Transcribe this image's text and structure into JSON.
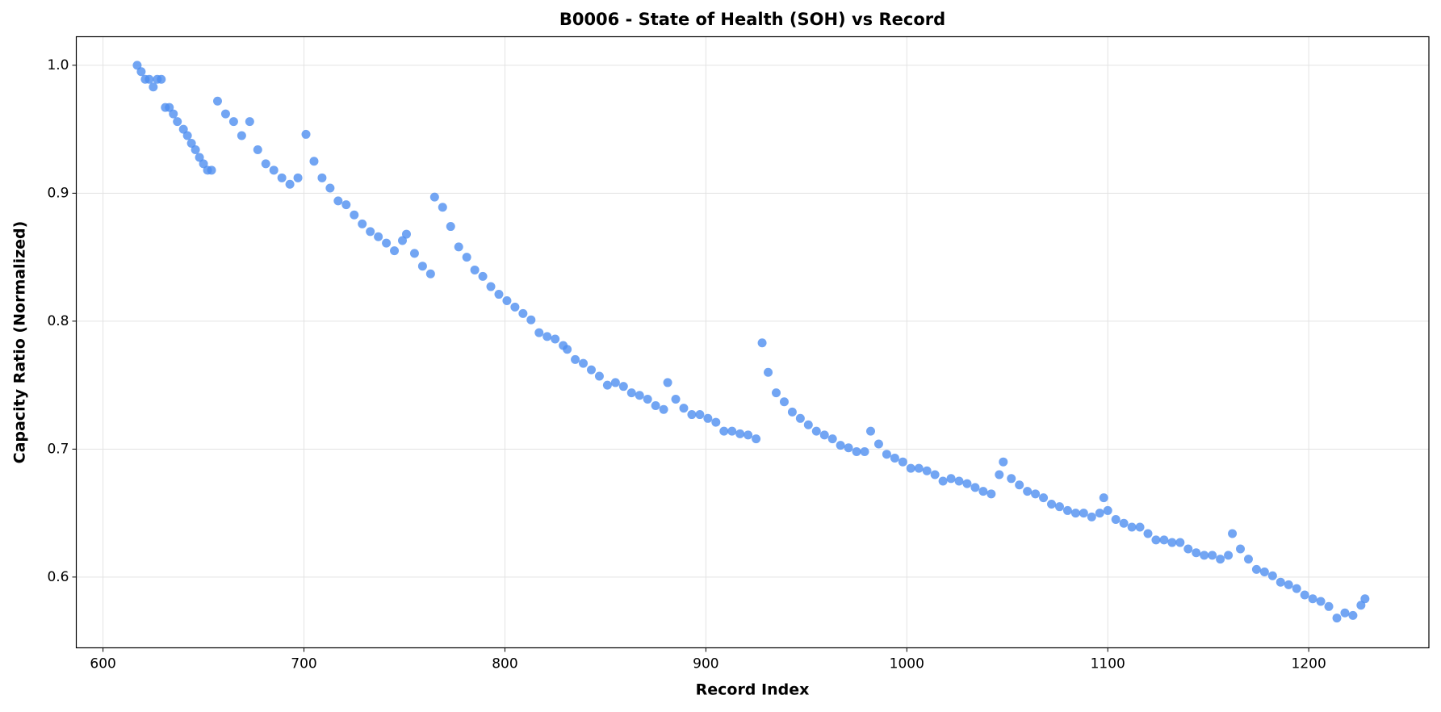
{
  "chart_data": {
    "type": "scatter",
    "title": "B0006 - State of Health (SOH) vs Record",
    "x_label": "Record Index",
    "y_label": "Capacity Ratio (Normalized)",
    "color": "#4f8ff0",
    "grid": true,
    "xlim": [
      586.7,
      1259.8
    ],
    "ylim": [
      0.5447,
      1.0223
    ],
    "xticks": [
      600,
      700,
      800,
      900,
      1000,
      1100,
      1200
    ],
    "yticks": [
      0.6,
      0.7,
      0.8,
      0.9,
      {
        "value": 1,
        "label": "1.0"
      }
    ],
    "x": [
      617,
      619,
      621,
      623,
      625,
      627,
      629,
      631,
      633,
      635,
      637,
      640,
      642,
      644,
      646,
      648,
      650,
      652,
      654,
      657,
      661,
      665,
      669,
      673,
      677,
      681,
      685,
      689,
      693,
      697,
      701,
      705,
      709,
      713,
      717,
      721,
      725,
      729,
      733,
      737,
      741,
      745,
      749,
      751,
      755,
      759,
      763,
      765,
      769,
      773,
      777,
      781,
      785,
      789,
      793,
      797,
      801,
      805,
      809,
      813,
      817,
      821,
      825,
      829,
      831,
      835,
      839,
      843,
      847,
      851,
      855,
      859,
      863,
      867,
      871,
      875,
      879,
      881,
      885,
      889,
      893,
      897,
      901,
      905,
      909,
      913,
      917,
      921,
      925,
      928,
      931,
      935,
      939,
      943,
      947,
      951,
      955,
      959,
      963,
      967,
      971,
      975,
      979,
      982,
      986,
      990,
      994,
      998,
      1002,
      1006,
      1010,
      1014,
      1018,
      1022,
      1026,
      1030,
      1034,
      1038,
      1042,
      1046,
      1048,
      1052,
      1056,
      1060,
      1064,
      1068,
      1072,
      1076,
      1080,
      1084,
      1088,
      1092,
      1096,
      1098,
      1100,
      1104,
      1108,
      1112,
      1116,
      1120,
      1124,
      1128,
      1132,
      1136,
      1140,
      1144,
      1148,
      1152,
      1156,
      1160,
      1162,
      1166,
      1170,
      1174,
      1178,
      1182,
      1186,
      1190,
      1194,
      1198,
      1202,
      1206,
      1210,
      1214,
      1218,
      1222,
      1226,
      1228
    ],
    "values": [
      1.0,
      0.995,
      0.989,
      0.989,
      0.983,
      0.989,
      0.989,
      0.967,
      0.967,
      0.962,
      0.956,
      0.95,
      0.945,
      0.939,
      0.934,
      0.928,
      0.923,
      0.918,
      0.918,
      0.972,
      0.962,
      0.956,
      0.945,
      0.956,
      0.934,
      0.923,
      0.918,
      0.912,
      0.907,
      0.912,
      0.946,
      0.925,
      0.912,
      0.904,
      0.894,
      0.891,
      0.883,
      0.876,
      0.87,
      0.866,
      0.861,
      0.855,
      0.863,
      0.868,
      0.853,
      0.843,
      0.837,
      0.897,
      0.889,
      0.874,
      0.858,
      0.85,
      0.84,
      0.835,
      0.827,
      0.821,
      0.816,
      0.811,
      0.806,
      0.801,
      0.791,
      0.788,
      0.786,
      0.781,
      0.778,
      0.77,
      0.767,
      0.762,
      0.757,
      0.75,
      0.752,
      0.749,
      0.744,
      0.742,
      0.739,
      0.734,
      0.731,
      0.752,
      0.739,
      0.732,
      0.727,
      0.727,
      0.724,
      0.721,
      0.714,
      0.714,
      0.712,
      0.711,
      0.708,
      0.783,
      0.76,
      0.744,
      0.737,
      0.729,
      0.724,
      0.719,
      0.714,
      0.711,
      0.708,
      0.703,
      0.701,
      0.698,
      0.698,
      0.714,
      0.704,
      0.696,
      0.693,
      0.69,
      0.685,
      0.685,
      0.683,
      0.68,
      0.675,
      0.677,
      0.675,
      0.673,
      0.67,
      0.667,
      0.665,
      0.68,
      0.69,
      0.677,
      0.672,
      0.667,
      0.665,
      0.662,
      0.657,
      0.655,
      0.652,
      0.65,
      0.65,
      0.647,
      0.65,
      0.662,
      0.652,
      0.645,
      0.642,
      0.639,
      0.639,
      0.634,
      0.629,
      0.629,
      0.627,
      0.627,
      0.622,
      0.619,
      0.617,
      0.617,
      0.614,
      0.617,
      0.634,
      0.622,
      0.614,
      0.606,
      0.604,
      0.601,
      0.596,
      0.594,
      0.591,
      0.586,
      0.583,
      0.581,
      0.577,
      0.568,
      0.572,
      0.57,
      0.578,
      0.583
    ]
  }
}
